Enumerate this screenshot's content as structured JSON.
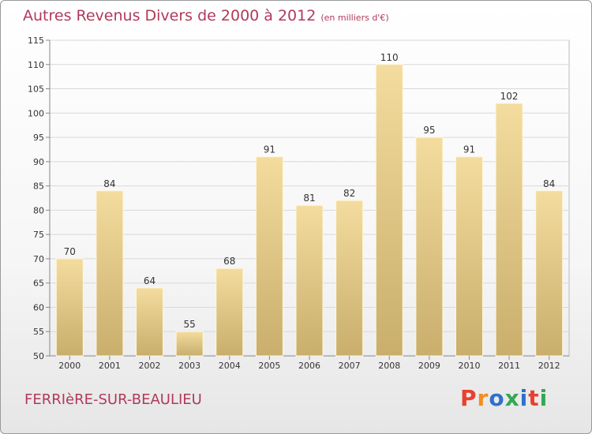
{
  "header": {
    "title": "Autres Revenus Divers de 2000 à 2012",
    "subtitle": "(en milliers d'€)"
  },
  "footer": {
    "commune": "FERRIèRE-SUR-BEAULIEU",
    "logo": "Proxiti"
  },
  "colors": {
    "title": "#b03a5b",
    "bar_light": "#f3dc9e",
    "bar_dark": "#c9ae6c",
    "logo_letters": [
      "#e8402f",
      "#f28d1f",
      "#2f6fcf",
      "#34a853",
      "#2f6fcf",
      "#e8402f",
      "#34a853"
    ]
  },
  "chart_data": {
    "type": "bar",
    "categories": [
      "2000",
      "2001",
      "2002",
      "2003",
      "2004",
      "2005",
      "2006",
      "2007",
      "2008",
      "2009",
      "2010",
      "2011",
      "2012"
    ],
    "values": [
      70,
      84,
      64,
      55,
      68,
      91,
      81,
      82,
      110,
      95,
      91,
      102,
      84
    ],
    "ylim": [
      50,
      115
    ],
    "yticks": [
      50,
      55,
      60,
      65,
      70,
      75,
      80,
      85,
      90,
      95,
      100,
      105,
      110,
      115
    ],
    "grid": true,
    "data_labels": true
  }
}
